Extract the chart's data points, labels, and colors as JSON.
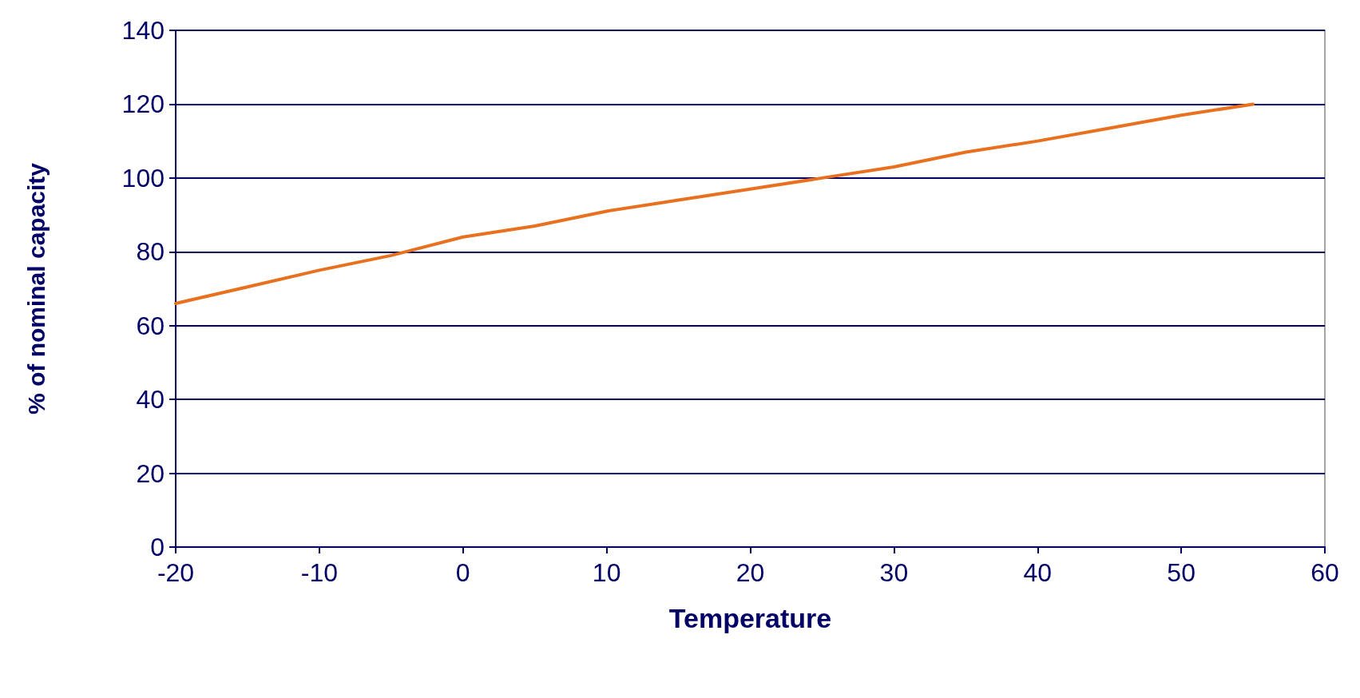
{
  "chart_data": {
    "type": "line",
    "xlabel": "Temperature",
    "ylabel": "% of nominal capacity",
    "x": [
      -20,
      -15,
      -10,
      -5,
      0,
      5,
      10,
      15,
      20,
      25,
      30,
      35,
      40,
      45,
      50,
      55
    ],
    "series": [
      {
        "color": "#e8701e",
        "values": [
          66,
          70.5,
          75,
          79,
          84,
          87,
          91,
          94,
          97,
          100,
          103,
          107,
          110,
          113.5,
          117,
          120
        ]
      }
    ],
    "xlim": [
      -20,
      60
    ],
    "xticks": [
      -20,
      -10,
      0,
      10,
      20,
      30,
      40,
      50,
      60
    ],
    "ylim": [
      0,
      140
    ],
    "yticks": [
      0,
      20,
      40,
      60,
      80,
      100,
      120,
      140
    ],
    "grid": "y",
    "marker": "none",
    "line_style": "solid"
  }
}
